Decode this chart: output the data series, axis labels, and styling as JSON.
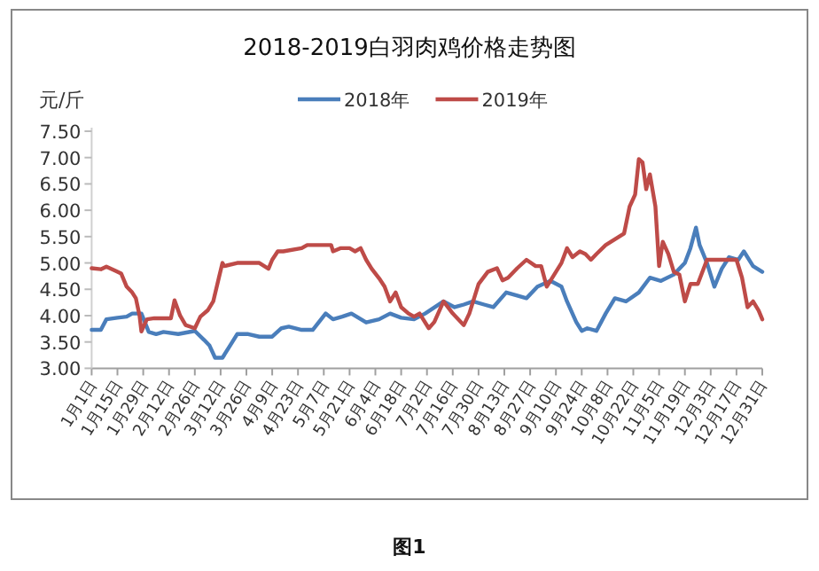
{
  "chart_data": {
    "type": "line",
    "title": "2018-2019白羽肉鸡价格走势图",
    "ylabel": "元/斤",
    "annotations": [
      "图1"
    ],
    "legend": "top",
    "grid": false,
    "line_style": "solid",
    "marker": "none",
    "xlim": [
      "--01-01",
      "--12-31"
    ],
    "xticks": [
      {
        "value": "--01-01",
        "label": "1月1日"
      },
      {
        "value": "--01-15",
        "label": "1月15日"
      },
      {
        "value": "--01-29",
        "label": "1月29日"
      },
      {
        "value": "--02-12",
        "label": "2月12日"
      },
      {
        "value": "--02-26",
        "label": "2月26日"
      },
      {
        "value": "--03-12",
        "label": "3月12日"
      },
      {
        "value": "--03-26",
        "label": "3月26日"
      },
      {
        "value": "--04-09",
        "label": "4月9日"
      },
      {
        "value": "--04-23",
        "label": "4月23日"
      },
      {
        "value": "--05-07",
        "label": "5月7日"
      },
      {
        "value": "--05-21",
        "label": "5月21日"
      },
      {
        "value": "--06-04",
        "label": "6月4日"
      },
      {
        "value": "--06-18",
        "label": "6月18日"
      },
      {
        "value": "--07-02",
        "label": "7月2日"
      },
      {
        "value": "--07-16",
        "label": "7月16日"
      },
      {
        "value": "--07-30",
        "label": "7月30日"
      },
      {
        "value": "--08-13",
        "label": "8月13日"
      },
      {
        "value": "--08-27",
        "label": "8月27日"
      },
      {
        "value": "--09-10",
        "label": "9月10日"
      },
      {
        "value": "--09-24",
        "label": "9月24日"
      },
      {
        "value": "--10-08",
        "label": "10月8日"
      },
      {
        "value": "--10-22",
        "label": "10月22日"
      },
      {
        "value": "--11-05",
        "label": "11月5日"
      },
      {
        "value": "--11-19",
        "label": "11月19日"
      },
      {
        "value": "--12-03",
        "label": "12月3日"
      },
      {
        "value": "--12-17",
        "label": "12月17日"
      },
      {
        "value": "--12-31",
        "label": "12月31日"
      }
    ],
    "ylim": [
      3,
      7.5
    ],
    "yticks": [
      {
        "value": 3,
        "label": "3.00"
      },
      {
        "value": 3.5,
        "label": "3.50"
      },
      {
        "value": 4,
        "label": "4.00"
      },
      {
        "value": 4.5,
        "label": "4.50"
      },
      {
        "value": 5,
        "label": "5.00"
      },
      {
        "value": 5.5,
        "label": "5.50"
      },
      {
        "value": 6,
        "label": "6.00"
      },
      {
        "value": 6.5,
        "label": "6.50"
      },
      {
        "value": 7,
        "label": "7.00"
      },
      {
        "value": 7.5,
        "label": "7.50"
      }
    ],
    "series": [
      {
        "name": "2018年",
        "color": "#4a7ebb",
        "x": [
          "--01-01",
          "--01-06",
          "--01-09",
          "--01-15",
          "--01-20",
          "--01-23",
          "--01-28",
          "--02-01",
          "--02-05",
          "--02-09",
          "--02-17",
          "--02-26",
          "--03-03",
          "--03-06",
          "--03-09",
          "--03-13",
          "--03-18",
          "--03-21",
          "--03-27",
          "--04-02",
          "--04-09",
          "--04-14",
          "--04-18",
          "--04-25",
          "--05-01",
          "--05-08",
          "--05-12",
          "--05-17",
          "--05-22",
          "--05-30",
          "--06-06",
          "--06-12",
          "--06-18",
          "--06-25",
          "--07-01",
          "--07-11",
          "--07-17",
          "--07-22",
          "--07-27",
          "--08-02",
          "--08-07",
          "--08-14",
          "--08-20",
          "--08-25",
          "--08-31",
          "--09-07",
          "--09-13",
          "--09-16",
          "--09-21",
          "--09-24",
          "--09-27",
          "--10-02",
          "--10-07",
          "--10-12",
          "--10-18",
          "--10-25",
          "--10-31",
          "--11-06",
          "--11-13",
          "--11-19",
          "--11-22",
          "--11-25",
          "--11-27",
          "--12-01",
          "--12-05",
          "--12-09",
          "--12-13",
          "--12-18",
          "--12-21",
          "--12-26",
          "--12-31"
        ],
        "values": [
          3.73,
          3.73,
          3.93,
          3.96,
          3.98,
          4.04,
          4.04,
          3.69,
          3.65,
          3.69,
          3.65,
          3.71,
          3.54,
          3.43,
          3.2,
          3.2,
          3.48,
          3.65,
          3.65,
          3.6,
          3.6,
          3.76,
          3.79,
          3.73,
          3.73,
          4.04,
          3.93,
          3.98,
          4.04,
          3.87,
          3.93,
          4.04,
          3.96,
          3.93,
          4.04,
          4.27,
          4.16,
          4.21,
          4.27,
          4.21,
          4.16,
          4.44,
          4.38,
          4.33,
          4.55,
          4.66,
          4.55,
          4.27,
          3.88,
          3.71,
          3.76,
          3.71,
          4.04,
          4.33,
          4.27,
          4.44,
          4.72,
          4.66,
          4.78,
          5.0,
          5.28,
          5.67,
          5.34,
          5.0,
          4.55,
          4.89,
          5.11,
          5.06,
          5.22,
          4.94,
          4.83
        ]
      },
      {
        "name": "2019年",
        "color": "#be4b48",
        "x": [
          "--01-01",
          "--01-06",
          "--01-09",
          "--01-14",
          "--01-17",
          "--01-20",
          "--01-23",
          "--01-25",
          "--01-27",
          "--01-28",
          "--01-31",
          "--02-04",
          "--02-13",
          "--02-15",
          "--02-18",
          "--02-21",
          "--02-26",
          "--03-01",
          "--03-05",
          "--03-08",
          "--03-11",
          "--03-13",
          "--03-14",
          "--03-21",
          "--04-02",
          "--04-07",
          "--04-09",
          "--04-12",
          "--04-15",
          "--04-25",
          "--04-28",
          "--05-11",
          "--05-12",
          "--05-16",
          "--05-21",
          "--05-24",
          "--05-27",
          "--05-30",
          "--06-02",
          "--06-06",
          "--06-09",
          "--06-12",
          "--06-15",
          "--06-18",
          "--06-22",
          "--06-25",
          "--06-28",
          "--07-03",
          "--07-06",
          "--07-11",
          "--07-16",
          "--07-22",
          "--07-25",
          "--07-30",
          "--08-04",
          "--08-09",
          "--08-12",
          "--08-15",
          "--08-20",
          "--08-25",
          "--08-30",
          "--09-02",
          "--09-05",
          "--09-10",
          "--09-13",
          "--09-16",
          "--09-19",
          "--09-23",
          "--09-26",
          "--09-29",
          "--10-02",
          "--10-07",
          "--10-12",
          "--10-17",
          "--10-20",
          "--10-23",
          "--10-25",
          "--10-27",
          "--10-29",
          "--10-31",
          "--11-03",
          "--11-05",
          "--11-07",
          "--11-10",
          "--11-13",
          "--11-16",
          "--11-19",
          "--11-22",
          "--11-26",
          "--12-01",
          "--12-05",
          "--12-10",
          "--12-17",
          "--12-20",
          "--12-23",
          "--12-26",
          "--12-29",
          "--12-31"
        ],
        "values": [
          4.9,
          4.88,
          4.93,
          4.85,
          4.8,
          4.55,
          4.44,
          4.33,
          4.0,
          3.7,
          3.93,
          3.95,
          3.95,
          4.29,
          4.0,
          3.82,
          3.76,
          3.98,
          4.1,
          4.27,
          4.71,
          5.0,
          4.94,
          5.0,
          5.0,
          4.89,
          5.06,
          5.22,
          5.22,
          5.28,
          5.34,
          5.34,
          5.22,
          5.28,
          5.28,
          5.22,
          5.28,
          5.06,
          4.89,
          4.71,
          4.55,
          4.27,
          4.44,
          4.16,
          4.04,
          3.98,
          4.04,
          3.76,
          3.88,
          4.27,
          4.04,
          3.82,
          4.04,
          4.6,
          4.83,
          4.9,
          4.67,
          4.72,
          4.9,
          5.06,
          4.94,
          4.94,
          4.55,
          4.83,
          5.0,
          5.28,
          5.11,
          5.22,
          5.17,
          5.06,
          5.17,
          5.34,
          5.45,
          5.56,
          6.07,
          6.3,
          6.97,
          6.91,
          6.4,
          6.68,
          6.07,
          4.94,
          5.4,
          5.17,
          4.83,
          4.78,
          4.27,
          4.6,
          4.6,
          5.06,
          5.06,
          5.06,
          5.06,
          4.72,
          4.16,
          4.27,
          4.1,
          3.93
        ]
      }
    ]
  }
}
